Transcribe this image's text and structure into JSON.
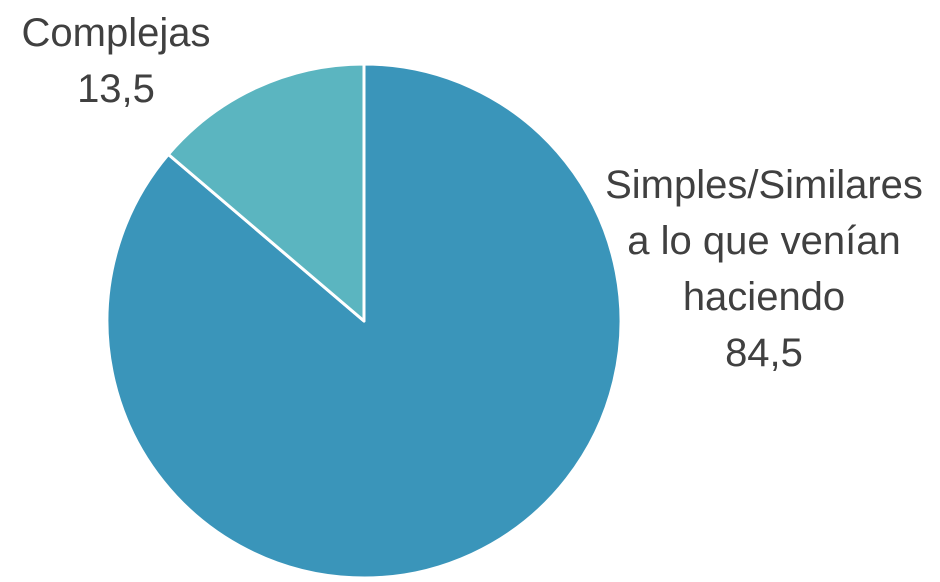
{
  "chart_data": {
    "type": "pie",
    "title": "",
    "slices": [
      {
        "label_lines": [
          "Simples/Similares",
          "a lo que venían",
          "haciendo"
        ],
        "value": 84.5,
        "value_label": "84,5",
        "color": "#3a95ba"
      },
      {
        "label_lines": [
          "Complejas"
        ],
        "value": 13.5,
        "value_label": "13,5",
        "color": "#5bb5c0"
      }
    ],
    "start_angle_deg": 0,
    "direction": "clockwise",
    "legend": "none",
    "slice_border_color": "#ffffff"
  }
}
